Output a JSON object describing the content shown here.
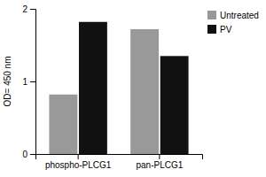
{
  "chart_data": {
    "type": "bar",
    "categories": [
      "phospho-PLCG1",
      "pan-PLCG1"
    ],
    "series": [
      {
        "name": "Untreated",
        "color": "#999999",
        "values": [
          0.82,
          1.72
        ]
      },
      {
        "name": "PV",
        "color": "#111111",
        "values": [
          1.82,
          1.35
        ]
      }
    ],
    "ylabel": "OD= 450 nm",
    "ylim": [
      0,
      2
    ],
    "yticks": [
      0,
      1,
      2
    ],
    "legend": "right",
    "grid": false
  }
}
